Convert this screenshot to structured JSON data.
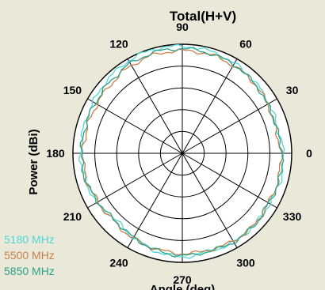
{
  "chart_data": {
    "type": "polar-line",
    "title": "Total(H+V)",
    "xlabel": "Angle (deg)",
    "ylabel": "Power (dBi)",
    "angle_ticks": [
      "0",
      "30",
      "60",
      "90",
      "120",
      "150",
      "180",
      "210",
      "240",
      "270",
      "300",
      "330"
    ],
    "grid": true,
    "legend_position": "bottom-left",
    "series": [
      {
        "name": "5180 MHz",
        "color": "#4fd6d6",
        "angles": [
          0,
          15,
          30,
          45,
          60,
          75,
          90,
          105,
          120,
          135,
          150,
          165,
          180,
          195,
          210,
          225,
          240,
          255,
          270,
          285,
          300,
          315,
          330,
          345
        ],
        "values": [
          0.92,
          0.9,
          0.91,
          0.93,
          0.95,
          0.97,
          0.98,
          0.99,
          0.98,
          0.96,
          0.94,
          0.93,
          0.93,
          0.92,
          0.9,
          0.86,
          0.89,
          0.93,
          0.95,
          0.93,
          0.94,
          0.93,
          0.92,
          0.93
        ]
      },
      {
        "name": "5500 MHz",
        "color": "#c8804a",
        "angles": [
          0,
          15,
          30,
          45,
          60,
          75,
          90,
          105,
          120,
          135,
          150,
          165,
          180,
          195,
          210,
          225,
          240,
          255,
          270,
          285,
          300,
          315,
          330,
          345
        ],
        "values": [
          0.9,
          0.88,
          0.9,
          0.92,
          0.93,
          0.94,
          0.94,
          0.94,
          0.93,
          0.91,
          0.9,
          0.9,
          0.91,
          0.91,
          0.89,
          0.88,
          0.9,
          0.91,
          0.92,
          0.92,
          0.93,
          0.93,
          0.91,
          0.91
        ]
      },
      {
        "name": "5850 MHz",
        "color": "#2fa08a",
        "angles": [
          0,
          15,
          30,
          45,
          60,
          75,
          90,
          105,
          120,
          135,
          150,
          165,
          180,
          195,
          210,
          225,
          240,
          255,
          270,
          285,
          300,
          315,
          330,
          345
        ],
        "values": [
          0.91,
          0.89,
          0.9,
          0.92,
          0.94,
          0.95,
          0.96,
          0.96,
          0.95,
          0.93,
          0.92,
          0.92,
          0.92,
          0.92,
          0.89,
          0.87,
          0.89,
          0.92,
          0.94,
          0.93,
          0.94,
          0.93,
          0.91,
          0.92
        ]
      }
    ]
  }
}
